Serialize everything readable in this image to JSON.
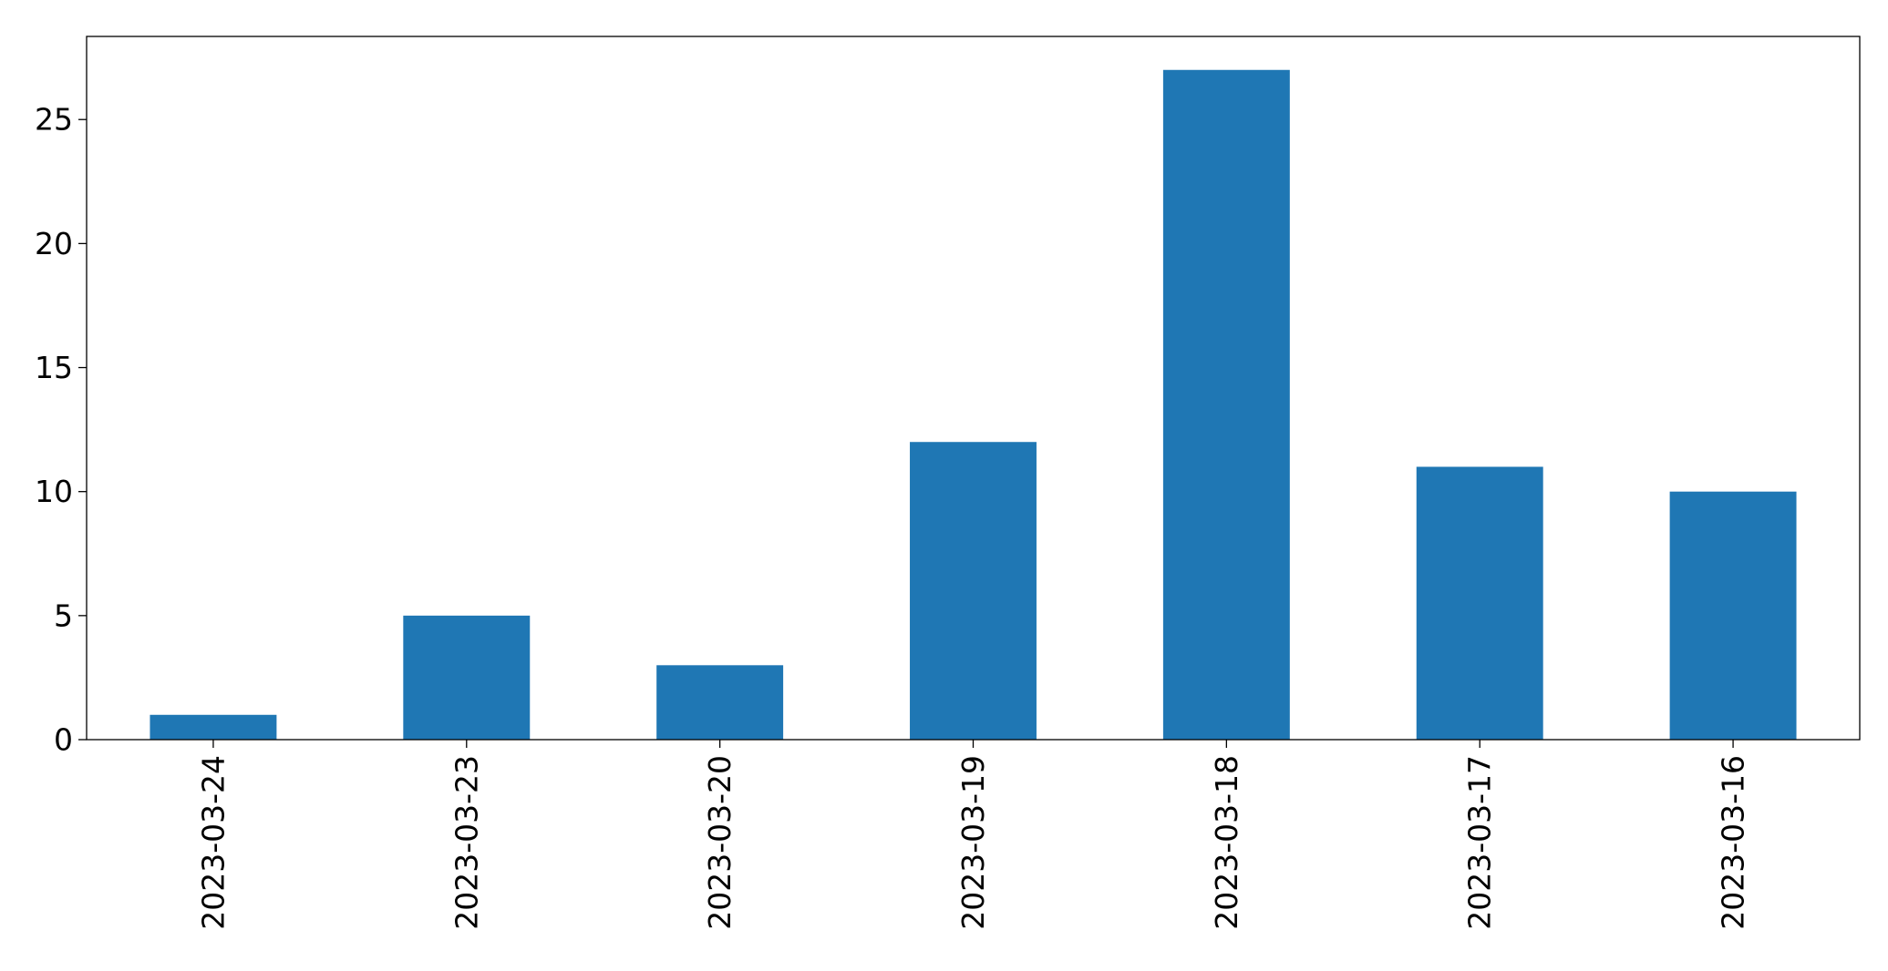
{
  "chart_data": {
    "type": "bar",
    "categories": [
      "2023-03-24",
      "2023-03-23",
      "2023-03-20",
      "2023-03-19",
      "2023-03-18",
      "2023-03-17",
      "2023-03-16"
    ],
    "values": [
      1,
      5,
      3,
      12,
      27,
      11,
      10
    ],
    "ylim": [
      0,
      28.35
    ],
    "yticks": [
      0,
      5,
      10,
      15,
      20,
      25
    ],
    "ytick_labels": [
      "0",
      "5",
      "10",
      "15",
      "20",
      "25"
    ],
    "title": "",
    "xlabel": "",
    "ylabel": "",
    "grid": false,
    "legend": "none",
    "bar_color": "#1f77b4"
  }
}
